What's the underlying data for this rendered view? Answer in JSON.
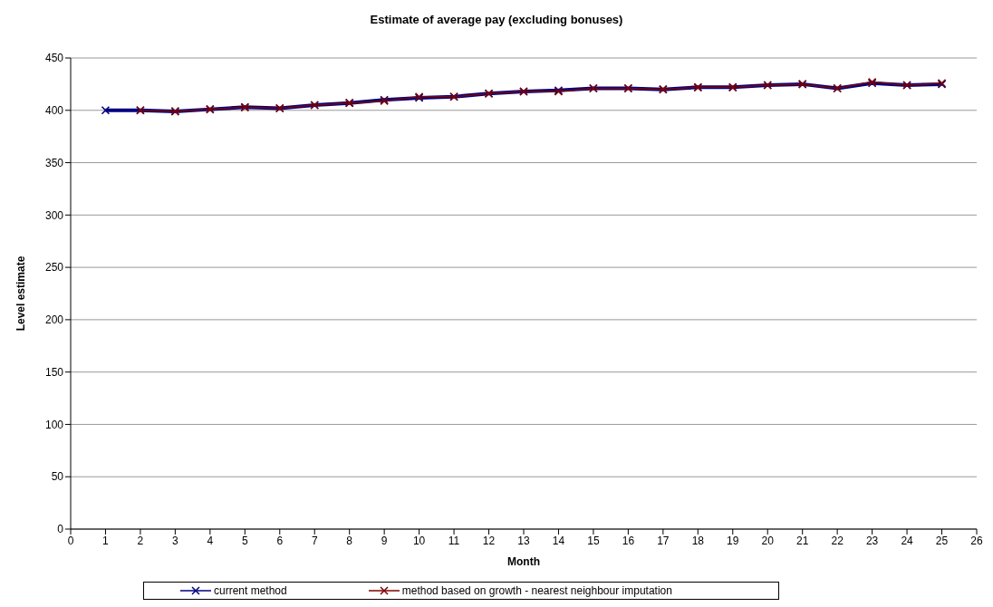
{
  "chart_data": {
    "type": "line",
    "title": "Estimate of average pay (excluding bonuses)",
    "xlabel": "Month",
    "ylabel": "Level estimate",
    "x": [
      1,
      2,
      3,
      4,
      5,
      6,
      7,
      8,
      9,
      10,
      11,
      12,
      13,
      14,
      15,
      16,
      17,
      18,
      19,
      20,
      21,
      22,
      23,
      24,
      25
    ],
    "series": [
      {
        "name": "current method",
        "color": "#000080",
        "values": [
          400,
          400,
          399,
          401,
          403,
          402,
          405,
          407,
          410,
          412,
          413,
          416,
          418,
          419,
          421,
          421,
          420,
          422,
          422,
          424,
          425,
          421,
          426,
          424,
          425
        ]
      },
      {
        "name": "method based on growth - nearest neighbour imputation",
        "color": "#800000",
        "values": [
          null,
          400,
          399,
          401,
          403,
          402,
          405,
          407,
          409,
          413,
          413,
          416,
          418,
          418,
          421,
          421,
          420,
          422,
          422,
          424,
          425,
          421,
          427,
          424,
          426
        ]
      }
    ],
    "xlim": [
      0,
      26
    ],
    "xticks": [
      0,
      1,
      2,
      3,
      4,
      5,
      6,
      7,
      8,
      9,
      10,
      11,
      12,
      13,
      14,
      15,
      16,
      17,
      18,
      19,
      20,
      21,
      22,
      23,
      24,
      25,
      26
    ],
    "ylim": [
      0,
      450
    ],
    "yticks": [
      0,
      50,
      100,
      150,
      200,
      250,
      300,
      350,
      400,
      450
    ],
    "grid": "y",
    "legend": "bottom",
    "marker": "cross",
    "line_style": "solid"
  }
}
